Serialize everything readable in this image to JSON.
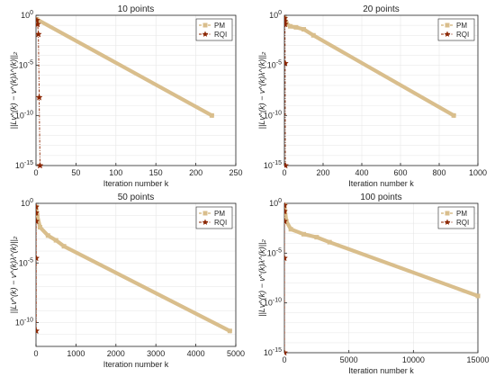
{
  "colors": {
    "pm": "#D9BE8C",
    "rqi": "#8B2500",
    "axis": "#262626",
    "grid": "#E6E6E6"
  },
  "chart_data": [
    {
      "type": "line",
      "title": "10 points",
      "xlabel": "Iteration number k",
      "ylabel": "||Lv^(k) − v^(k)λ^(k)||₂",
      "xlim": [
        0,
        250
      ],
      "xticks": [
        "0",
        "50",
        "100",
        "150",
        "200",
        "250"
      ],
      "yscale": "log",
      "ylim_exp": [
        -15,
        0
      ],
      "yticks": [
        "10^-15",
        "10^-10",
        "10^-5",
        "10^0"
      ],
      "grid": true,
      "legend_position": "top-right",
      "series": [
        {
          "name": "PM",
          "style": "dashed-square",
          "x": [
            1,
            220
          ],
          "y_log10": [
            -0.4,
            -10.0
          ]
        },
        {
          "name": "RQI",
          "style": "dash-dot-star",
          "x": [
            1,
            2,
            3,
            4,
            5
          ],
          "y_log10": [
            -0.5,
            -0.9,
            -1.9,
            -8.2,
            -15.0
          ]
        }
      ]
    },
    {
      "type": "line",
      "title": "20 points",
      "xlabel": "Iteration number k",
      "ylabel": "||Lv^(k) − v^(k)λ^(k)||₂",
      "xlim": [
        0,
        1000
      ],
      "xticks": [
        "0",
        "200",
        "400",
        "600",
        "800",
        "1000"
      ],
      "yscale": "log",
      "ylim_exp": [
        -15,
        0
      ],
      "yticks": [
        "10^-15",
        "10^-10",
        "10^-5",
        "10^0"
      ],
      "grid": true,
      "legend_position": "top-right",
      "series": [
        {
          "name": "PM",
          "style": "dashed-square",
          "x": [
            1,
            10,
            30,
            60,
            100,
            150,
            875
          ],
          "y_log10": [
            -0.3,
            -0.8,
            -1.1,
            -1.2,
            -1.4,
            -2.0,
            -10.0
          ]
        },
        {
          "name": "RQI",
          "style": "dash-dot-star",
          "x": [
            1,
            2,
            3,
            4,
            5
          ],
          "y_log10": [
            -0.3,
            -0.6,
            -0.9,
            -4.8,
            -15.0
          ]
        }
      ]
    },
    {
      "type": "line",
      "title": "50 points",
      "xlabel": "Iteration number k",
      "ylabel": "||Lv^(k) − v^(k)λ^(k)||₂",
      "xlim": [
        0,
        5000
      ],
      "xticks": [
        "0",
        "1000",
        "2000",
        "3000",
        "4000",
        "5000"
      ],
      "yscale": "log",
      "ylim_exp": [
        -12,
        0
      ],
      "yticks": [
        "10^-10",
        "10^-5",
        "10^0"
      ],
      "grid": true,
      "legend_position": "top-right",
      "series": [
        {
          "name": "PM",
          "style": "dashed-square",
          "x": [
            1,
            30,
            100,
            300,
            500,
            700,
            4850
          ],
          "y_log10": [
            -0.3,
            -1.0,
            -2.0,
            -2.7,
            -3.1,
            -3.6,
            -10.7
          ]
        },
        {
          "name": "RQI",
          "style": "dash-dot-star",
          "x": [
            1,
            2,
            3,
            4,
            5
          ],
          "y_log10": [
            -0.3,
            -0.8,
            -1.5,
            -4.6,
            -10.7
          ]
        }
      ]
    },
    {
      "type": "line",
      "title": "100 points",
      "xlabel": "Iteration number k",
      "ylabel": "||Lv^(k) − v^(k)λ^(k)||₂",
      "xlim": [
        0,
        15000
      ],
      "xticks": [
        "0",
        "5000",
        "10000",
        "15000"
      ],
      "yscale": "log",
      "ylim_exp": [
        -15,
        0
      ],
      "yticks": [
        "10^-15",
        "10^-10",
        "10^-5",
        "10^0"
      ],
      "grid": true,
      "legend_position": "top-right",
      "series": [
        {
          "name": "PM",
          "style": "dashed-square",
          "x": [
            1,
            150,
            500,
            1500,
            2500,
            3500,
            15000
          ],
          "y_log10": [
            -0.2,
            -1.8,
            -2.6,
            -3.1,
            -3.4,
            -3.9,
            -9.3
          ]
        },
        {
          "name": "RQI",
          "style": "dash-dot-star",
          "x": [
            1,
            2,
            3,
            4,
            5
          ],
          "y_log10": [
            -0.2,
            -0.8,
            -1.8,
            -5.5,
            -15.0
          ]
        }
      ]
    }
  ]
}
